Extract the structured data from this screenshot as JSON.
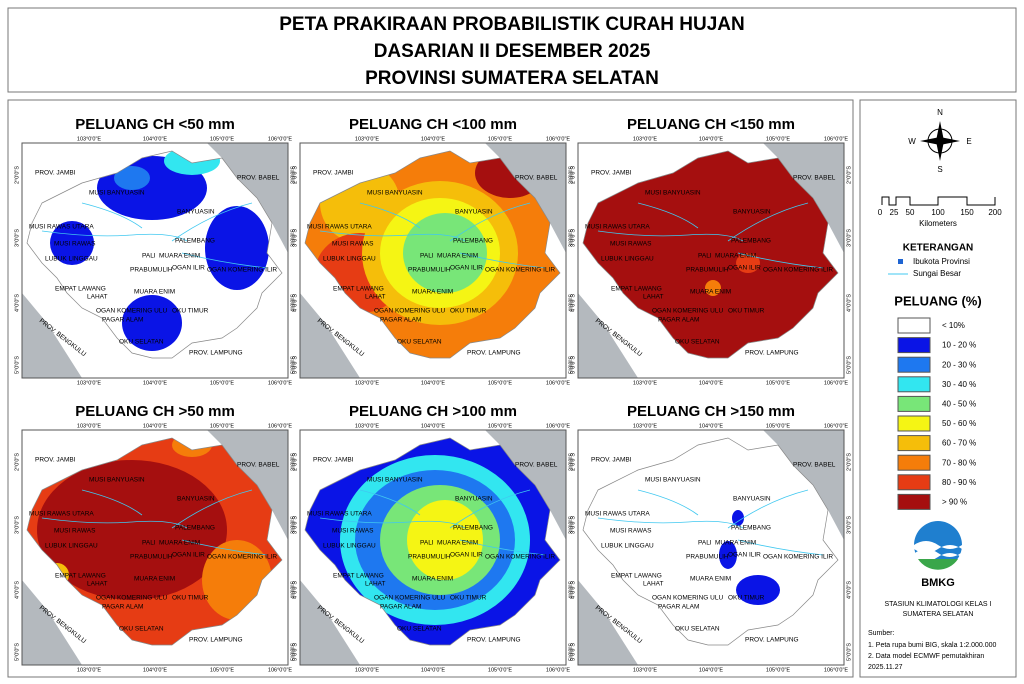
{
  "header": {
    "lines": [
      "PETA PRAKIRAAN PROBABILISTIK CURAH HUJAN",
      "DASARIAN II DESEMBER 2025",
      "PROVINSI SUMATERA SELATAN"
    ]
  },
  "panels": [
    {
      "title": "PELUANG CH <50 mm"
    },
    {
      "title": "PELUANG CH <100 mm"
    },
    {
      "title": "PELUANG CH <150 mm"
    },
    {
      "title": "PELUANG CH >50 mm"
    },
    {
      "title": "PELUANG CH >100 mm"
    },
    {
      "title": "PELUANG CH >150 mm"
    }
  ],
  "maps": {
    "lon": [
      "103°0'0\"E",
      "104°0'0\"E",
      "105°0'0\"E",
      "106°0'0\"E"
    ],
    "lat": [
      "2°0'0\"S",
      "3°0'0\"S",
      "4°0'0\"S",
      "5°0'0\"S"
    ],
    "regions": [
      "PROV. JAMBI",
      "PROV. BABEL",
      "MUSI BANYUASIN",
      "BANYUASIN",
      "MUSI RAWAS UTARA",
      "MUSI RAWAS",
      "PALEMBANG",
      "LUBUK LINGGAU",
      "PALI",
      "MUARA ENIM",
      "PRABUMULIH",
      "OGAN ILIR",
      "OGAN KOMERING ILIR",
      "EMPAT LAWANG",
      "LAHAT",
      "MUARA ENIM",
      "OGAN KOMERING ULU",
      "OKU TIMUR",
      "PAGAR ALAM",
      "OKU SELATAN",
      "PROV. LAMPUNG",
      "PROV. BENGKULU"
    ]
  },
  "legend": {
    "compass": {
      "n": "N",
      "s": "S",
      "e": "E",
      "w": "W"
    },
    "scale": {
      "ticks": [
        "0",
        "25",
        "50",
        "100",
        "150",
        "200"
      ],
      "unit": "Kilometers"
    },
    "keterangan": {
      "title": "KETERANGAN",
      "items": [
        "Ibukota Provinsi",
        "Sungai Besar"
      ]
    },
    "peluang": {
      "title": "PELUANG (%)",
      "classes": [
        {
          "label": "< 10%",
          "color": "#ffffff"
        },
        {
          "label": "10 - 20 %",
          "color": "#0a14e6"
        },
        {
          "label": "20 - 30 %",
          "color": "#1e78f0"
        },
        {
          "label": "30 - 40 %",
          "color": "#32e6f0"
        },
        {
          "label": "40 - 50 %",
          "color": "#78e678"
        },
        {
          "label": "50 - 60 %",
          "color": "#f5f514"
        },
        {
          "label": "60 - 70 %",
          "color": "#f5be0a"
        },
        {
          "label": "70 - 80 %",
          "color": "#f57d0a"
        },
        {
          "label": "80 - 90 %",
          "color": "#e63c14"
        },
        {
          "label": "> 90 %",
          "color": "#a50f0f"
        }
      ]
    },
    "logo": "BMKG",
    "station": [
      "STASIUN KLIMATOLOGI KELAS I",
      "SUMATERA SELATAN"
    ],
    "source": {
      "title": "Sumber:",
      "lines": [
        "1. Peta rupa bumi BIG, skala 1:2.000.000",
        "2. Data model ECMWF pemutakhiran",
        "    2025.11.27"
      ]
    }
  }
}
